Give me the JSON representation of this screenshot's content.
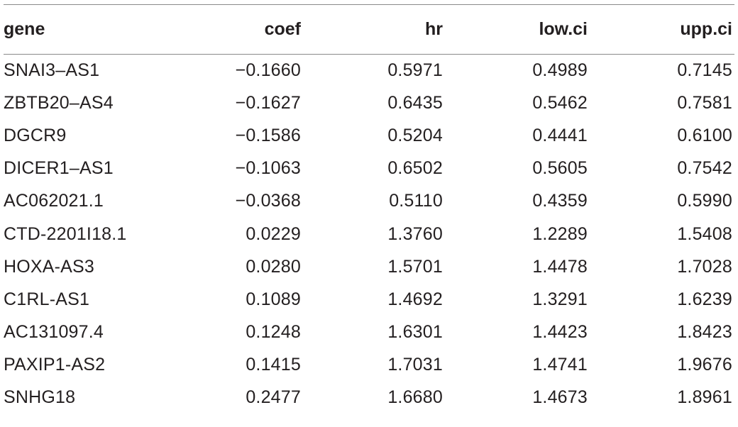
{
  "table": {
    "headers": {
      "gene": "gene",
      "coef": "coef",
      "hr": "hr",
      "low_ci": "low.ci",
      "upp_ci": "upp.ci"
    },
    "rows": [
      {
        "gene": "SNAI3–AS1",
        "coef": "−0.1660",
        "hr": "0.5971",
        "low_ci": "0.4989",
        "upp_ci": "0.7145"
      },
      {
        "gene": "ZBTB20–AS4",
        "coef": "−0.1627",
        "hr": "0.6435",
        "low_ci": "0.5462",
        "upp_ci": "0.7581"
      },
      {
        "gene": "DGCR9",
        "coef": "−0.1586",
        "hr": "0.5204",
        "low_ci": "0.4441",
        "upp_ci": "0.6100"
      },
      {
        "gene": "DICER1–AS1",
        "coef": "−0.1063",
        "hr": "0.6502",
        "low_ci": "0.5605",
        "upp_ci": "0.7542"
      },
      {
        "gene": "AC062021.1",
        "coef": "−0.0368",
        "hr": "0.5110",
        "low_ci": "0.4359",
        "upp_ci": "0.5990"
      },
      {
        "gene": "CTD-2201I18.1",
        "coef": "0.0229",
        "hr": "1.3760",
        "low_ci": "1.2289",
        "upp_ci": "1.5408"
      },
      {
        "gene": "HOXA-AS3",
        "coef": "0.0280",
        "hr": "1.5701",
        "low_ci": "1.4478",
        "upp_ci": "1.7028"
      },
      {
        "gene": "C1RL-AS1",
        "coef": "0.1089",
        "hr": "1.4692",
        "low_ci": "1.3291",
        "upp_ci": "1.6239"
      },
      {
        "gene": "AC131097.4",
        "coef": "0.1248",
        "hr": "1.6301",
        "low_ci": "1.4423",
        "upp_ci": "1.8423"
      },
      {
        "gene": "PAXIP1-AS2",
        "coef": "0.1415",
        "hr": "1.7031",
        "low_ci": "1.4741",
        "upp_ci": "1.9676"
      },
      {
        "gene": "SNHG18",
        "coef": "0.2477",
        "hr": "1.6680",
        "low_ci": "1.4673",
        "upp_ci": "1.8961"
      }
    ]
  }
}
